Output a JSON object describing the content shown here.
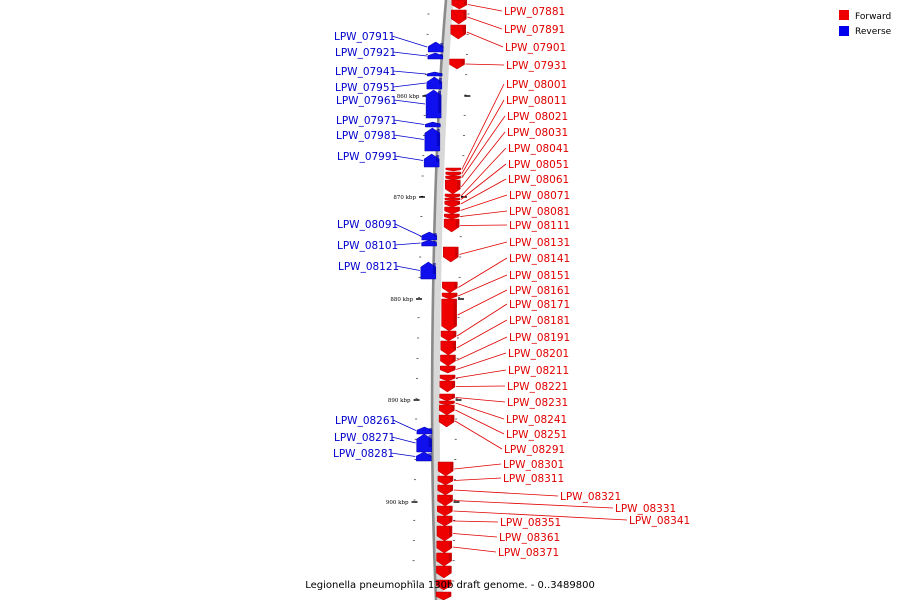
{
  "caption": "Legionella pneumophila 130b draft genome. - 0..3489800",
  "legend": {
    "placement": "top-right",
    "items": [
      {
        "label": "Forward",
        "color": "#ee0000"
      },
      {
        "label": "Reverse",
        "color": "#0000ee"
      }
    ]
  },
  "scale_labels": [
    "860 kbp",
    "870 kbp",
    "880 kbp",
    "890 kbp",
    "900 kbp"
  ],
  "genes": [
    {
      "id": "LPW_07881",
      "strand": "forward"
    },
    {
      "id": "LPW_07891",
      "strand": "forward"
    },
    {
      "id": "LPW_07901",
      "strand": "forward"
    },
    {
      "id": "LPW_07911",
      "strand": "reverse"
    },
    {
      "id": "LPW_07921",
      "strand": "reverse"
    },
    {
      "id": "LPW_07931",
      "strand": "forward"
    },
    {
      "id": "LPW_07941",
      "strand": "reverse"
    },
    {
      "id": "LPW_07951",
      "strand": "reverse"
    },
    {
      "id": "LPW_07961",
      "strand": "reverse"
    },
    {
      "id": "LPW_07971",
      "strand": "reverse"
    },
    {
      "id": "LPW_07981",
      "strand": "reverse"
    },
    {
      "id": "LPW_07991",
      "strand": "reverse"
    },
    {
      "id": "LPW_08001",
      "strand": "forward"
    },
    {
      "id": "LPW_08011",
      "strand": "forward"
    },
    {
      "id": "LPW_08021",
      "strand": "forward"
    },
    {
      "id": "LPW_08031",
      "strand": "forward"
    },
    {
      "id": "LPW_08041",
      "strand": "forward"
    },
    {
      "id": "LPW_08051",
      "strand": "forward"
    },
    {
      "id": "LPW_08061",
      "strand": "forward"
    },
    {
      "id": "LPW_08071",
      "strand": "forward"
    },
    {
      "id": "LPW_08081",
      "strand": "forward"
    },
    {
      "id": "LPW_08091",
      "strand": "reverse"
    },
    {
      "id": "LPW_08101",
      "strand": "reverse"
    },
    {
      "id": "LPW_08111",
      "strand": "forward"
    },
    {
      "id": "LPW_08121",
      "strand": "reverse"
    },
    {
      "id": "LPW_08131",
      "strand": "forward"
    },
    {
      "id": "LPW_08141",
      "strand": "forward"
    },
    {
      "id": "LPW_08151",
      "strand": "forward"
    },
    {
      "id": "LPW_08161",
      "strand": "forward"
    },
    {
      "id": "LPW_08171",
      "strand": "forward"
    },
    {
      "id": "LPW_08181",
      "strand": "forward"
    },
    {
      "id": "LPW_08191",
      "strand": "forward"
    },
    {
      "id": "LPW_08201",
      "strand": "forward"
    },
    {
      "id": "LPW_08211",
      "strand": "forward"
    },
    {
      "id": "LPW_08221",
      "strand": "forward"
    },
    {
      "id": "LPW_08231",
      "strand": "forward"
    },
    {
      "id": "LPW_08241",
      "strand": "forward"
    },
    {
      "id": "LPW_08251",
      "strand": "forward"
    },
    {
      "id": "LPW_08261",
      "strand": "reverse"
    },
    {
      "id": "LPW_08271",
      "strand": "reverse"
    },
    {
      "id": "LPW_08281",
      "strand": "reverse"
    },
    {
      "id": "LPW_08291",
      "strand": "forward"
    },
    {
      "id": "LPW_08301",
      "strand": "forward"
    },
    {
      "id": "LPW_08311",
      "strand": "forward"
    },
    {
      "id": "LPW_08321",
      "strand": "forward"
    },
    {
      "id": "LPW_08331",
      "strand": "forward"
    },
    {
      "id": "LPW_08341",
      "strand": "forward"
    },
    {
      "id": "LPW_08351",
      "strand": "forward"
    },
    {
      "id": "LPW_08361",
      "strand": "forward"
    },
    {
      "id": "LPW_08371",
      "strand": "forward"
    }
  ]
}
